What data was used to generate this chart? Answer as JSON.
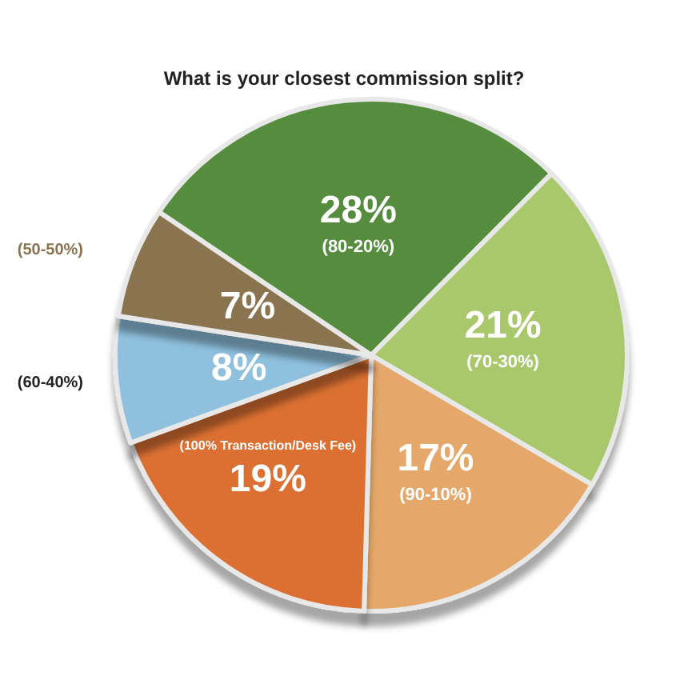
{
  "chart_data": {
    "type": "pie",
    "title": "What is your closest commission split?",
    "categories": [
      "(80-20%)",
      "(70-30%)",
      "(90-10%)",
      "(100% Transaction/Desk Fee)",
      "(60-40%)",
      "(50-50%)"
    ],
    "values": [
      28,
      21,
      17,
      19,
      8,
      7
    ],
    "colors": [
      "#548c3c",
      "#a9c86c",
      "#e5a86b",
      "#db6f30",
      "#8fc1df",
      "#8a7350"
    ],
    "value_labels": [
      "28%",
      "21%",
      "17%",
      "19%",
      "8%",
      "7%"
    ]
  }
}
